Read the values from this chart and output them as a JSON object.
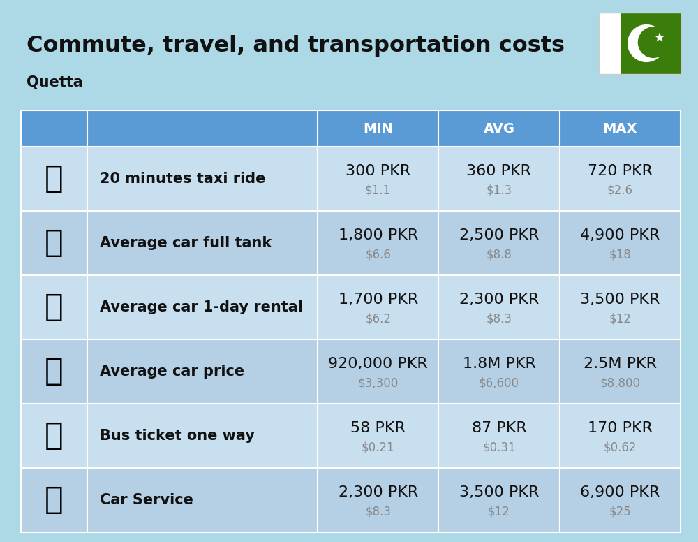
{
  "title": "Commute, travel, and transportation costs",
  "subtitle": "Quetta",
  "bg_color": "#add8e6",
  "header_bg": "#5b9bd5",
  "header_text_color": "#ffffff",
  "row_bg_even": "#c8dff0",
  "row_bg_odd": "#b5cfe4",
  "divider_color": "#ffffff",
  "col_headers": [
    "MIN",
    "AVG",
    "MAX"
  ],
  "rows": [
    {
      "label": "20 minutes taxi ride",
      "min_pkr": "300 PKR",
      "min_usd": "$1.1",
      "avg_pkr": "360 PKR",
      "avg_usd": "$1.3",
      "max_pkr": "720 PKR",
      "max_usd": "$2.6"
    },
    {
      "label": "Average car full tank",
      "min_pkr": "1,800 PKR",
      "min_usd": "$6.6",
      "avg_pkr": "2,500 PKR",
      "avg_usd": "$8.8",
      "max_pkr": "4,900 PKR",
      "max_usd": "$18"
    },
    {
      "label": "Average car 1-day rental",
      "min_pkr": "1,700 PKR",
      "min_usd": "$6.2",
      "avg_pkr": "2,300 PKR",
      "avg_usd": "$8.3",
      "max_pkr": "3,500 PKR",
      "max_usd": "$12"
    },
    {
      "label": "Average car price",
      "min_pkr": "920,000 PKR",
      "min_usd": "$3,300",
      "avg_pkr": "1.8M PKR",
      "avg_usd": "$6,600",
      "max_pkr": "2.5M PKR",
      "max_usd": "$8,800"
    },
    {
      "label": "Bus ticket one way",
      "min_pkr": "58 PKR",
      "min_usd": "$0.21",
      "avg_pkr": "87 PKR",
      "avg_usd": "$0.31",
      "max_pkr": "170 PKR",
      "max_usd": "$0.62"
    },
    {
      "label": "Car Service",
      "min_pkr": "2,300 PKR",
      "min_usd": "$8.3",
      "avg_pkr": "3,500 PKR",
      "avg_usd": "$12",
      "max_pkr": "6,900 PKR",
      "max_usd": "$25"
    }
  ],
  "title_fontsize": 23,
  "subtitle_fontsize": 15,
  "header_fontsize": 14,
  "label_fontsize": 15,
  "value_fontsize": 16,
  "usd_fontsize": 12,
  "flag_green": "#3a7d0a",
  "flag_white": "#ffffff"
}
